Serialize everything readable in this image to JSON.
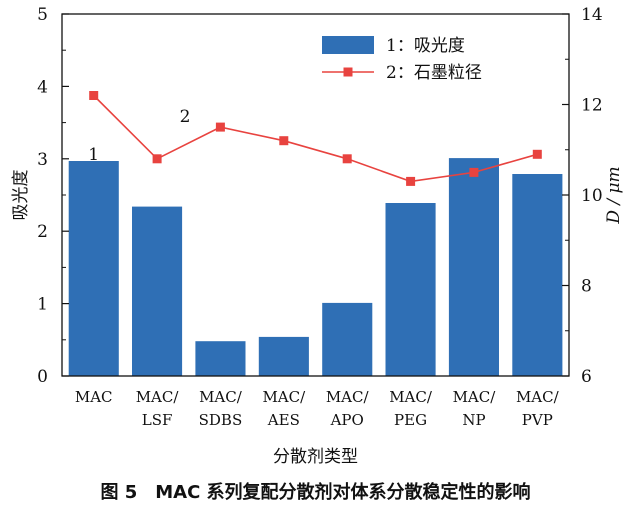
{
  "chart_data": {
    "type": "bar",
    "caption": "图 5　MAC 系列复配分散剂对体系分散稳定性的影响",
    "xlabel": "分散剂类型",
    "ylabel": "吸光度",
    "y2label": "D / μm",
    "categories": [
      "MAC",
      "MAC/\nLSF",
      "MAC/\nSDBS",
      "MAC/\nAES",
      "MAC/\nAPO",
      "MAC/\nPEG",
      "MAC/\nNP",
      "MAC/\nPVP"
    ],
    "ylim": [
      0,
      5
    ],
    "yticks": [
      0,
      1,
      2,
      3,
      4,
      5
    ],
    "y2lim": [
      6,
      14
    ],
    "y2ticks": [
      6,
      8,
      10,
      12,
      14
    ],
    "series": [
      {
        "name": "1：吸光度",
        "type": "bar",
        "axis": "left",
        "values": [
          2.97,
          2.34,
          0.48,
          0.54,
          1.01,
          2.39,
          3.01,
          2.79
        ]
      },
      {
        "name": "2：石墨粒径",
        "type": "line",
        "axis": "right",
        "values": [
          12.2,
          10.8,
          11.5,
          11.2,
          10.8,
          10.3,
          10.5,
          10.9
        ]
      }
    ],
    "annotations": [
      "1",
      "2"
    ],
    "colors": {
      "bar": "#2f6fb5",
      "line": "#e8433f",
      "axis": "#111111"
    },
    "legend_position": "top-right",
    "grid": false
  }
}
